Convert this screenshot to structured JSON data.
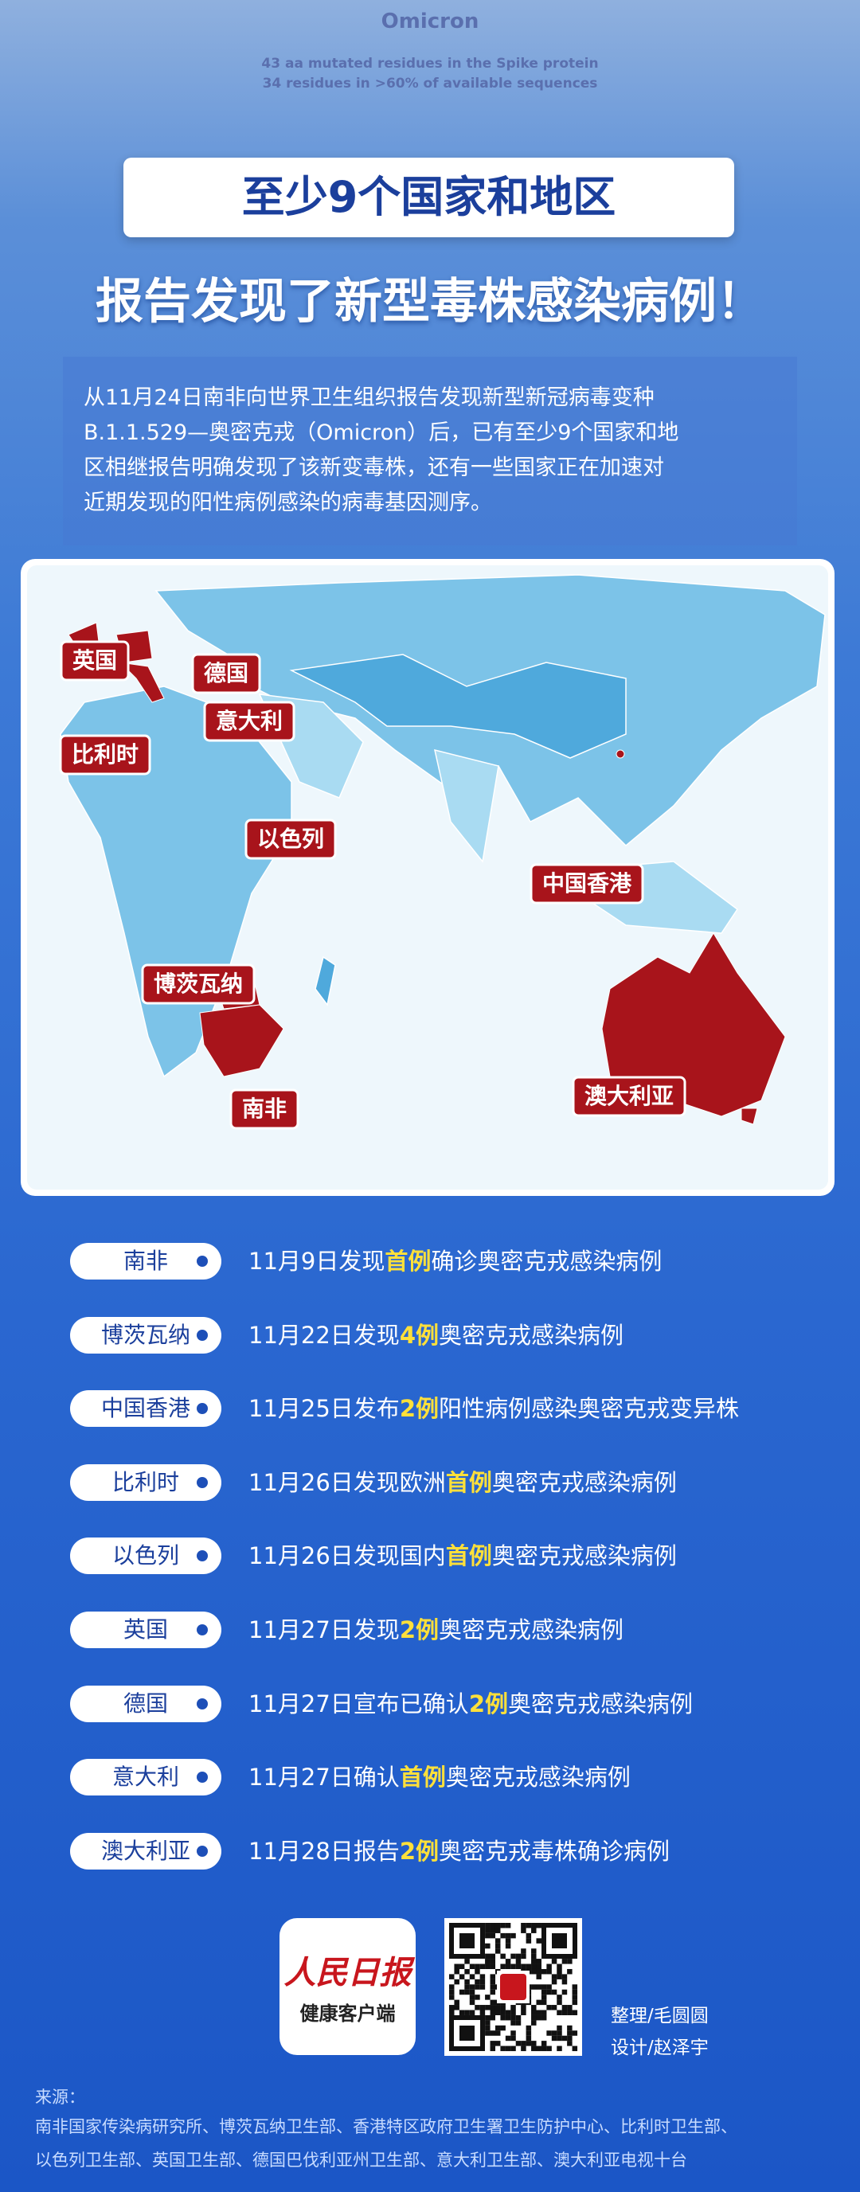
{
  "header": {
    "kicker": "Omicron",
    "kicker_lines": [
      "43 aa mutated residues in the Spike protein",
      "34 residues in >60% of available sequences"
    ],
    "title_line1": "至少9个国家和地区",
    "title_line2": "报告发现了新型毒株感染病例！"
  },
  "intro": {
    "lines": [
      "从11月24日南非向世界卫生组织报告发现新型新冠病毒变种",
      "B.1.1.529—奥密克戎（Omicron）后，已有至少9个国家和地",
      "区相继报告明确发现了该新变毒株，还有一些国家正在加速对",
      "近期发现的阳性病例感染的病毒基因测序。"
    ]
  },
  "map": {
    "labels": [
      "英国",
      "德国",
      "意大利",
      "比利时",
      "以色列",
      "中国香港",
      "博茨瓦纳",
      "南非",
      "澳大利亚"
    ]
  },
  "timeline": {
    "rows": [
      {
        "place": "南非",
        "parts": [
          "11月9日发现",
          "首例",
          "确诊奥密克戎感染病例"
        ]
      },
      {
        "place": "博茨瓦纳",
        "parts": [
          "11月22日发现",
          "4例",
          "奥密克戎感染病例"
        ]
      },
      {
        "place": "中国香港",
        "parts": [
          "11月25日发布",
          "2例",
          "阳性病例感染奥密克戎变异株"
        ]
      },
      {
        "place": "比利时",
        "parts": [
          "11月26日发现欧洲",
          "首例",
          "奥密克戎感染病例"
        ]
      },
      {
        "place": "以色列",
        "parts": [
          "11月26日发现国内",
          "首例",
          "奥密克戎感染病例"
        ]
      },
      {
        "place": "英国",
        "parts": [
          "11月27日发现",
          "2例",
          "奥密克戎感染病例"
        ]
      },
      {
        "place": "德国",
        "parts": [
          "11月27日宣布已确认",
          "2例",
          "奥密克戎感染病例"
        ]
      },
      {
        "place": "意大利",
        "parts": [
          "11月27日确认",
          "首例",
          "奥密克戎感染病例"
        ]
      },
      {
        "place": "澳大利亚",
        "parts": [
          "11月28日报告",
          "2例",
          "奥密克戎毒株确诊病例"
        ]
      }
    ]
  },
  "footer": {
    "logo_title": "人民日报",
    "logo_sub": "健康客户端",
    "credits": [
      "整理/毛圆圆",
      "设计/赵泽宇"
    ],
    "source_label": "来源：",
    "source_lines": [
      "南非国家传染病研究所、博茨瓦纳卫生部、香港特区政府卫生署卫生防护中心、比利时卫生部、",
      "以色列卫生部、英国卫生部、德国巴伐利亚州卫生部、意大利卫生部、澳大利亚电视十台"
    ]
  }
}
